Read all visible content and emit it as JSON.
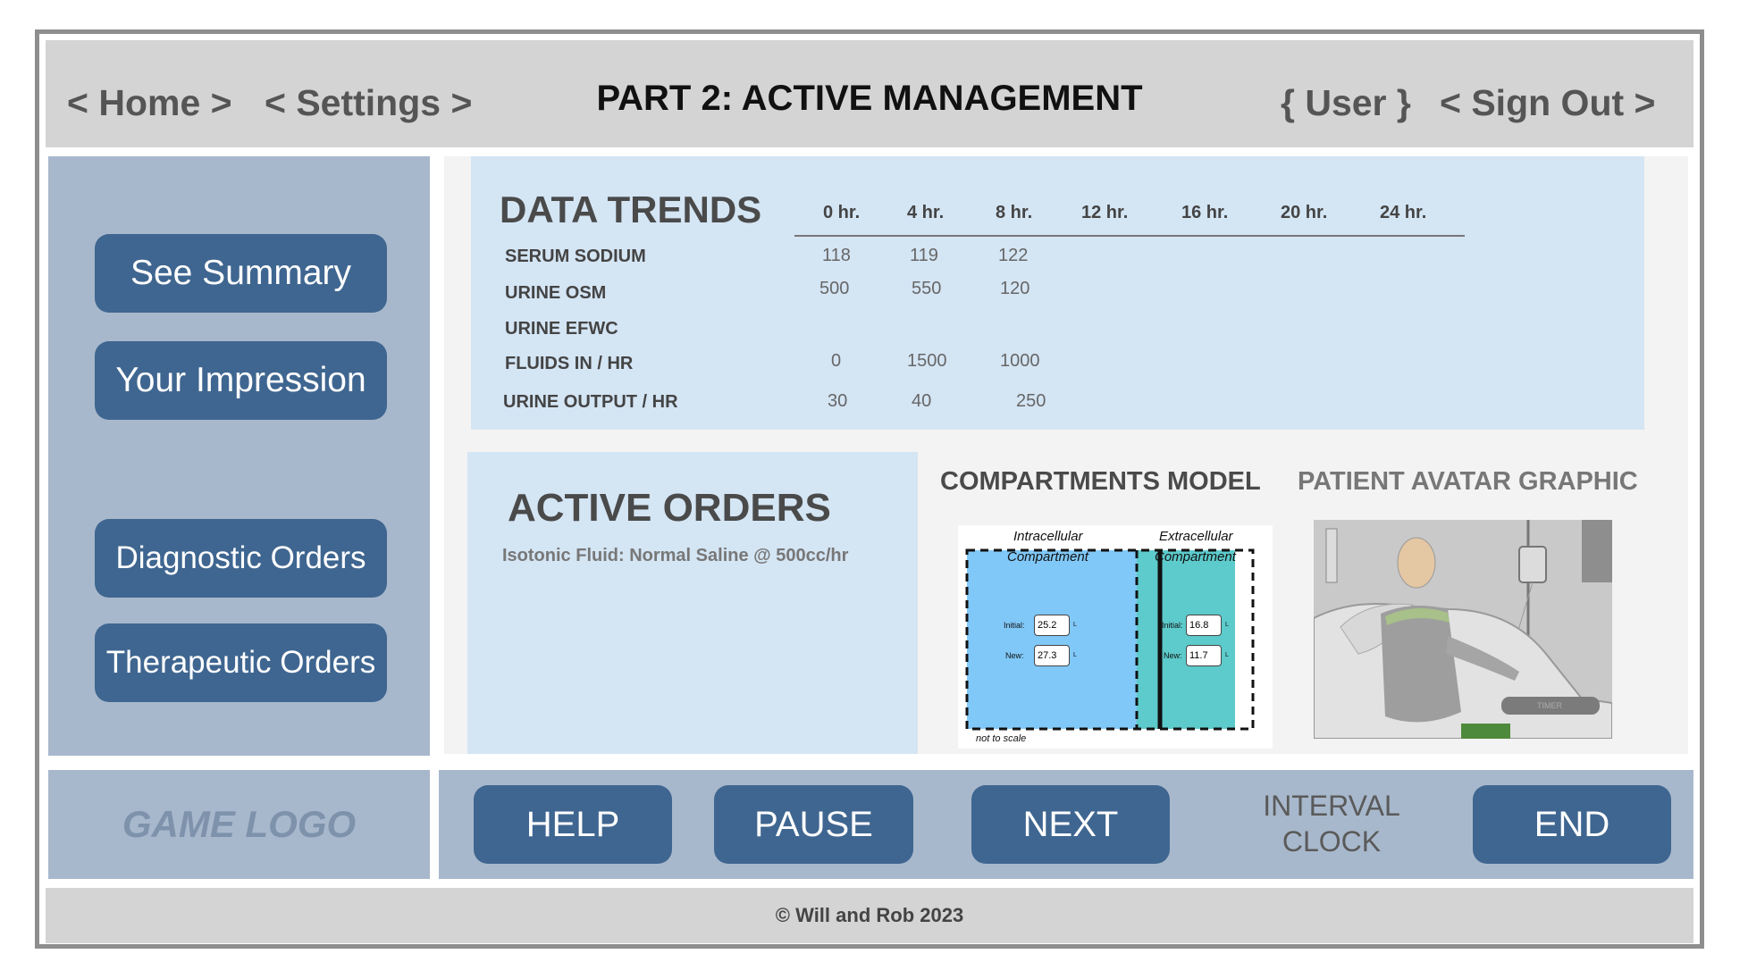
{
  "header": {
    "home": "< Home >",
    "settings": "< Settings >",
    "title": "PART 2:  ACTIVE MANAGEMENT",
    "user": "{ User }",
    "sign_out": "< Sign Out >"
  },
  "sidebar": {
    "see_summary": "See Summary",
    "your_impression": "Your Impression",
    "diagnostic_orders": "Diagnostic Orders",
    "therapeutic_orders": "Therapeutic Orders"
  },
  "data_trends": {
    "heading": "DATA TRENDS",
    "columns": [
      "0 hr.",
      "4 hr.",
      "8 hr.",
      "12 hr.",
      "16 hr.",
      "20 hr.",
      "24 hr."
    ],
    "rows": [
      {
        "label": "SERUM SODIUM",
        "values": [
          "118",
          "119",
          "122"
        ]
      },
      {
        "label": "URINE OSM",
        "values": [
          "500",
          "550",
          "120"
        ]
      },
      {
        "label": "URINE EFWC",
        "values": []
      },
      {
        "label": "FLUIDS IN / HR",
        "values": [
          "0",
          "1500",
          "1000"
        ]
      },
      {
        "label": "URINE OUTPUT / HR",
        "values": [
          "30",
          "40",
          "250"
        ]
      }
    ]
  },
  "active_orders": {
    "heading": "ACTIVE ORDERS",
    "text": "Isotonic Fluid:  Normal Saline @ 500cc/hr"
  },
  "compartments": {
    "heading": "COMPARTMENTS MODEL",
    "intracellular_label_1": "Intracellular",
    "intracellular_label_2": "Compartment",
    "extracellular_label_1": "Extracellular",
    "extracellular_label_2": "Compartment",
    "initial_label": "Initial:",
    "new_label": "New:",
    "intra_initial": "25.2",
    "intra_new": "27.3",
    "extra_initial": "16.8",
    "extra_new": "11.7",
    "unit": "L",
    "note": "not to scale",
    "colors": {
      "intracellular": "#80c8f8",
      "extracellular": "#5dcacb"
    }
  },
  "avatar": {
    "heading": "PATIENT AVATAR GRAPHIC",
    "timer_label": "TIMER"
  },
  "bottom": {
    "logo": "GAME LOGO",
    "help": "HELP",
    "pause": "PAUSE",
    "next": "NEXT",
    "interval_1": "INTERVAL",
    "interval_2": "CLOCK",
    "end": "END"
  },
  "footer": {
    "copyright": "© Will and Rob 2023"
  },
  "colors": {
    "button": "#3f6690",
    "sidebar": "#a8b8cc",
    "panel": "#d4e5f4",
    "header_bar": "#d4d4d4"
  }
}
